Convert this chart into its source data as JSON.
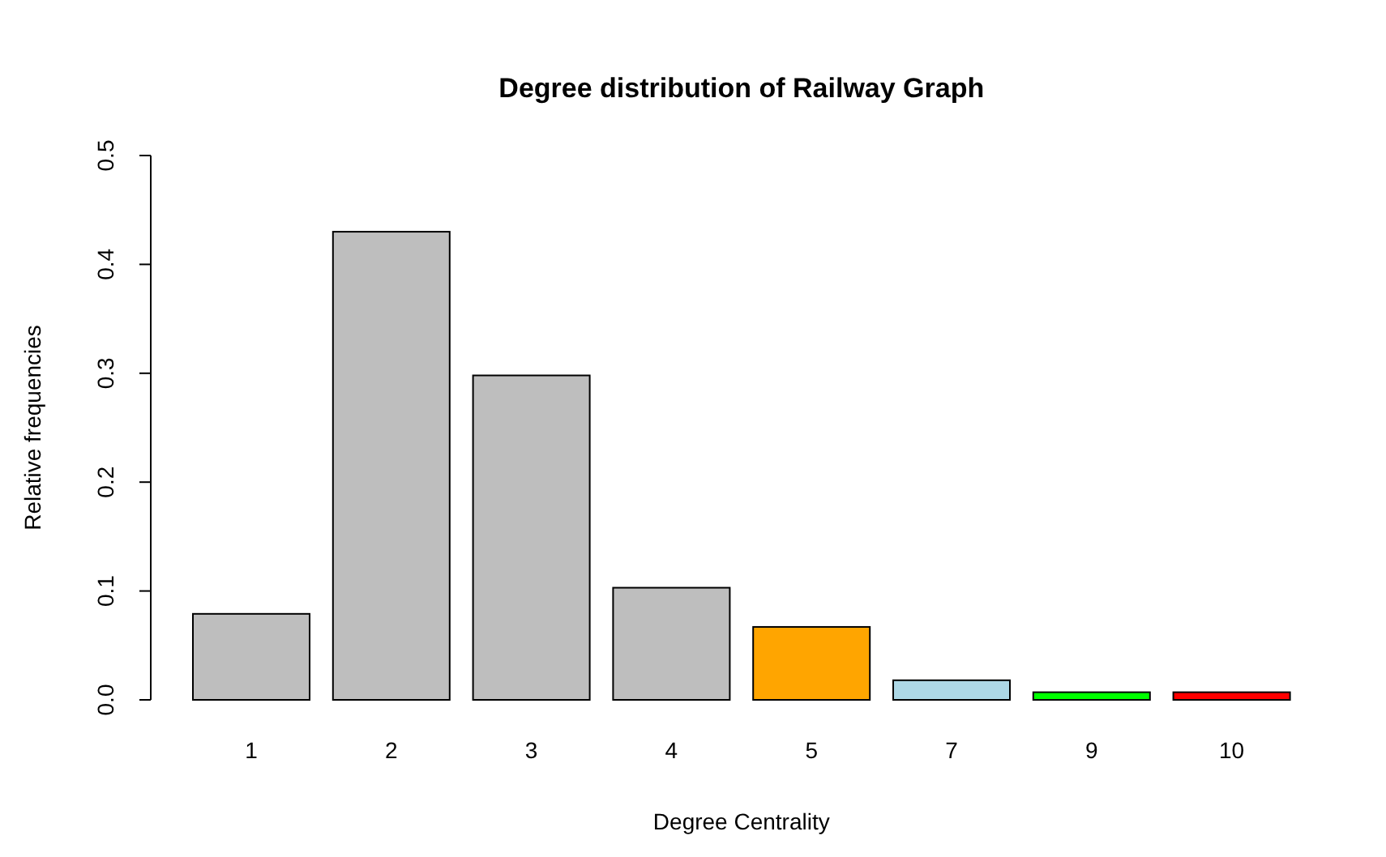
{
  "chart_data": {
    "type": "bar",
    "title": "Degree distribution of Railway Graph",
    "xlabel": "Degree Centrality",
    "ylabel": "Relative frequencies",
    "categories": [
      "1",
      "2",
      "3",
      "4",
      "5",
      "7",
      "9",
      "10"
    ],
    "values": [
      0.079,
      0.43,
      0.298,
      0.103,
      0.067,
      0.018,
      0.007,
      0.007
    ],
    "colors": [
      "#bebebe",
      "#bebebe",
      "#bebebe",
      "#bebebe",
      "#ffa500",
      "#add8e6",
      "#00ff00",
      "#ff0000"
    ],
    "ylim": [
      0,
      0.5
    ],
    "yticks": [
      {
        "value": 0,
        "label": "0.0"
      },
      0.1,
      0.2,
      0.3,
      0.4,
      0.5
    ],
    "grid": false
  }
}
